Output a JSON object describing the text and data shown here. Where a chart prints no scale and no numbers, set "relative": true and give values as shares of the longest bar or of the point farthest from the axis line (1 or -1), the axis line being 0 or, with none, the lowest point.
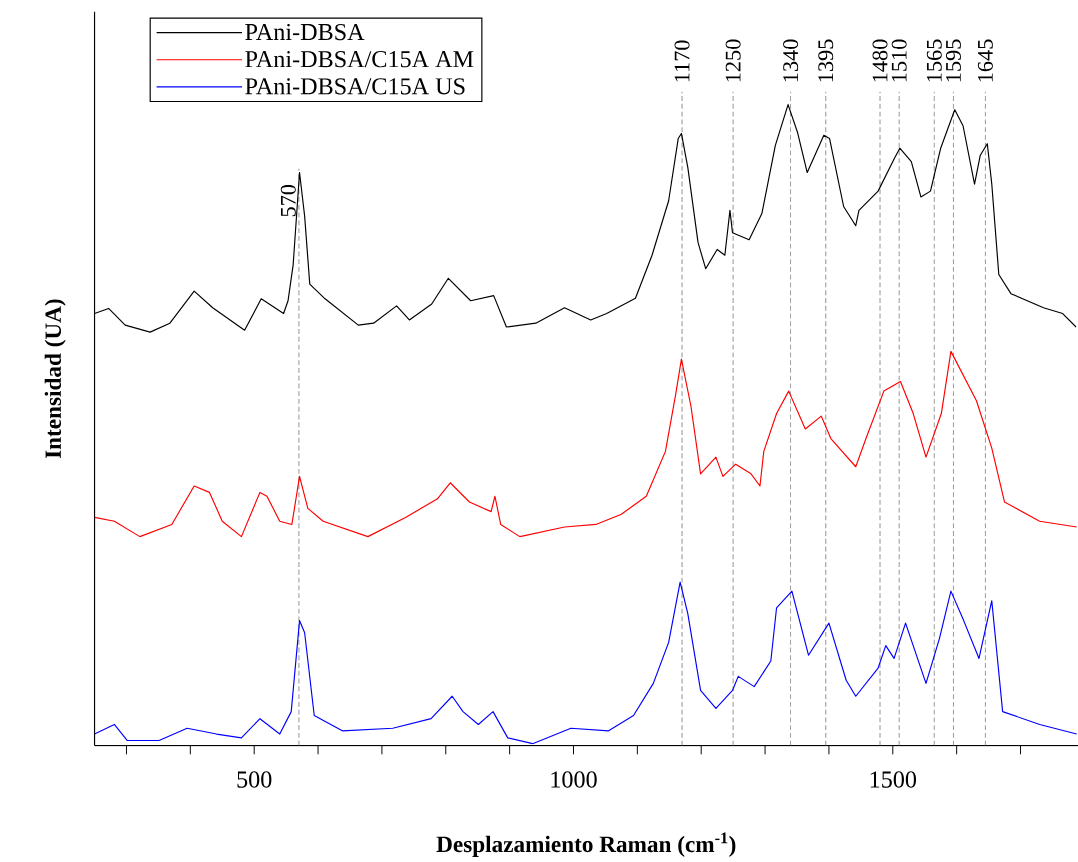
{
  "chart_data": {
    "type": "line",
    "relative": true,
    "xlabel": "Desplazamiento Raman (cm$^{-1}$)",
    "ylabel": "Intensidad (UA)",
    "xlim": [
      250,
      1790
    ],
    "xticks": [
      {
        "value": 300,
        "label": null
      },
      {
        "value": 400,
        "label": null
      },
      500,
      {
        "value": 600,
        "label": null
      },
      {
        "value": 700,
        "label": null
      },
      {
        "value": 800,
        "label": null
      },
      {
        "value": 900,
        "label": null
      },
      1000,
      {
        "value": 1100,
        "label": null
      },
      {
        "value": 1200,
        "label": null
      },
      {
        "value": 1300,
        "label": null
      },
      {
        "value": 1400,
        "label": null
      },
      1500,
      {
        "value": 1600,
        "label": null
      },
      {
        "value": 1700,
        "label": null
      }
    ],
    "legend": "top left",
    "series": [
      {
        "name": "PAni-DBSA",
        "color": "#000000",
        "x": [
          250,
          272,
          298,
          337,
          368,
          406,
          435,
          485,
          511,
          546,
          553,
          561,
          571,
          579,
          587,
          611,
          663,
          687,
          723,
          743,
          778,
          804,
          839,
          875,
          895,
          941,
          986,
          1027,
          1052,
          1097,
          1123,
          1149,
          1164,
          1169,
          1179,
          1195,
          1207,
          1225,
          1237,
          1245,
          1249,
          1275,
          1295,
          1316,
          1336,
          1351,
          1366,
          1392,
          1401,
          1423,
          1442,
          1447,
          1477,
          1503,
          1511,
          1529,
          1544,
          1559,
          1575,
          1597,
          1610,
          1628,
          1637,
          1648,
          1655,
          1666,
          1685,
          1736,
          1766,
          1787
        ],
        "values": [
          0.674,
          0.682,
          0.656,
          0.645,
          0.659,
          0.709,
          0.683,
          0.648,
          0.697,
          0.674,
          0.694,
          0.75,
          0.894,
          0.826,
          0.72,
          0.697,
          0.656,
          0.659,
          0.686,
          0.664,
          0.689,
          0.729,
          0.694,
          0.702,
          0.653,
          0.659,
          0.683,
          0.664,
          0.674,
          0.698,
          0.765,
          0.85,
          0.947,
          0.955,
          0.902,
          0.785,
          0.744,
          0.774,
          0.765,
          0.835,
          0.8,
          0.789,
          0.83,
          0.936,
          1.0,
          0.956,
          0.894,
          0.952,
          0.947,
          0.841,
          0.811,
          0.835,
          0.865,
          0.917,
          0.932,
          0.911,
          0.856,
          0.865,
          0.932,
          0.992,
          0.967,
          0.876,
          0.921,
          0.939,
          0.876,
          0.735,
          0.705,
          0.683,
          0.674,
          0.653
        ]
      },
      {
        "name": "PAni-DBSA/C15A AM",
        "color": "#ff0000",
        "x": [
          250,
          281,
          321,
          371,
          406,
          430,
          450,
          480,
          509,
          520,
          540,
          559,
          571,
          584,
          608,
          678,
          737,
          787,
          807,
          837,
          871,
          877,
          886,
          916,
          986,
          1035,
          1075,
          1114,
          1144,
          1160,
          1169,
          1184,
          1199,
          1223,
          1234,
          1254,
          1278,
          1292,
          1298,
          1318,
          1337,
          1363,
          1388,
          1403,
          1442,
          1458,
          1486,
          1512,
          1532,
          1552,
          1576,
          1591,
          1631,
          1655,
          1675,
          1730,
          1788
        ],
        "values": [
          0.356,
          0.35,
          0.326,
          0.345,
          0.405,
          0.395,
          0.35,
          0.326,
          0.395,
          0.389,
          0.35,
          0.345,
          0.42,
          0.37,
          0.35,
          0.326,
          0.356,
          0.385,
          0.41,
          0.38,
          0.365,
          0.389,
          0.345,
          0.326,
          0.341,
          0.345,
          0.361,
          0.389,
          0.459,
          0.548,
          0.603,
          0.529,
          0.424,
          0.45,
          0.42,
          0.439,
          0.424,
          0.405,
          0.459,
          0.518,
          0.553,
          0.494,
          0.514,
          0.479,
          0.435,
          0.479,
          0.553,
          0.568,
          0.518,
          0.45,
          0.518,
          0.615,
          0.538,
          0.464,
          0.38,
          0.35,
          0.341
        ]
      },
      {
        "name": "PAni-DBSA/C15A US",
        "color": "#0000ff",
        "x": [
          250,
          281,
          301,
          351,
          395,
          441,
          480,
          509,
          540,
          558,
          571,
          579,
          594,
          638,
          717,
          777,
          810,
          827,
          851,
          874,
          897,
          936,
          996,
          1055,
          1094,
          1125,
          1149,
          1167,
          1179,
          1199,
          1223,
          1249,
          1258,
          1283,
          1309,
          1318,
          1342,
          1368,
          1400,
          1427,
          1442,
          1477,
          1489,
          1502,
          1520,
          1552,
          1573,
          1591,
          1611,
          1635,
          1655,
          1672,
          1730,
          1788
        ],
        "values": [
          0.018,
          0.033,
          0.008,
          0.008,
          0.027,
          0.018,
          0.012,
          0.042,
          0.018,
          0.053,
          0.195,
          0.176,
          0.047,
          0.023,
          0.027,
          0.042,
          0.077,
          0.053,
          0.033,
          0.053,
          0.012,
          0.003,
          0.027,
          0.023,
          0.047,
          0.097,
          0.161,
          0.255,
          0.206,
          0.086,
          0.058,
          0.086,
          0.108,
          0.092,
          0.132,
          0.215,
          0.241,
          0.141,
          0.191,
          0.102,
          0.077,
          0.121,
          0.156,
          0.136,
          0.191,
          0.097,
          0.167,
          0.241,
          0.195,
          0.136,
          0.226,
          0.053,
          0.033,
          0.018
        ]
      }
    ],
    "ref_lines": [
      {
        "axis": "x",
        "value": 570,
        "label": "570",
        "color": "#a0a0a0",
        "line_style": "dashed"
      },
      {
        "axis": "x",
        "value": 1170,
        "label": "1170",
        "color": "#a0a0a0",
        "line_style": "dashed"
      },
      {
        "axis": "x",
        "value": 1250,
        "label": "1250",
        "color": "#a0a0a0",
        "line_style": "dashed"
      },
      {
        "axis": "x",
        "value": 1340,
        "label": "1340",
        "color": "#a0a0a0",
        "line_style": "dashed"
      },
      {
        "axis": "x",
        "value": 1395,
        "label": "1395",
        "color": "#a0a0a0",
        "line_style": "dashed"
      },
      {
        "axis": "x",
        "value": 1480,
        "label": "1480",
        "color": "#a0a0a0",
        "line_style": "dashed"
      },
      {
        "axis": "x",
        "value": 1510,
        "label": "1510",
        "color": "#a0a0a0",
        "line_style": "dashed"
      },
      {
        "axis": "x",
        "value": 1565,
        "label": "1565",
        "color": "#a0a0a0",
        "line_style": "dashed"
      },
      {
        "axis": "x",
        "value": 1595,
        "label": "1595",
        "color": "#a0a0a0",
        "line_style": "dashed"
      },
      {
        "axis": "x",
        "value": 1645,
        "label": "1645",
        "color": "#a0a0a0",
        "line_style": "dashed"
      }
    ]
  }
}
